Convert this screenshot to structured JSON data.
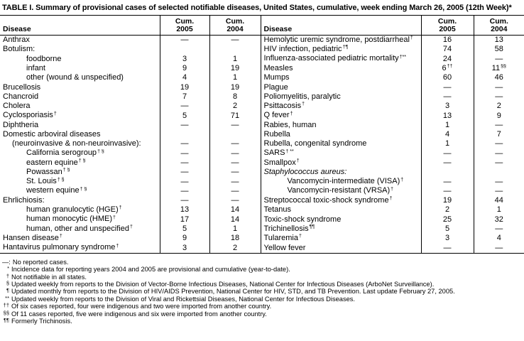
{
  "title": "TABLE I. Summary of provisional cases of selected notifiable diseases, United States, cumulative, week ending March 26, 2005 (12th Week)*",
  "header": {
    "disease_label": "Disease",
    "cum_label": "Cum.",
    "year_2005": "2005",
    "year_2004": "2004"
  },
  "table": {
    "left_rows": [
      {
        "name": "Anthrax",
        "indent": 0,
        "c2005": "—",
        "c2004": "—"
      },
      {
        "name": "Botulism:",
        "indent": 0,
        "c2005": "",
        "c2004": ""
      },
      {
        "name": "foodborne",
        "indent": 2,
        "c2005": "3",
        "c2004": "1"
      },
      {
        "name": "infant",
        "indent": 2,
        "c2005": "9",
        "c2004": "19"
      },
      {
        "name": "other (wound & unspecified)",
        "indent": 2,
        "c2005": "4",
        "c2004": "1"
      },
      {
        "name": "Brucellosis",
        "indent": 0,
        "c2005": "19",
        "c2004": "19"
      },
      {
        "name": "Chancroid",
        "indent": 0,
        "c2005": "7",
        "c2004": "8"
      },
      {
        "name": "Cholera",
        "indent": 0,
        "c2005": "—",
        "c2004": "2"
      },
      {
        "name": "Cyclosporiasis",
        "sup": "†",
        "indent": 0,
        "c2005": "5",
        "c2004": "71"
      },
      {
        "name": "Diphtheria",
        "indent": 0,
        "c2005": "—",
        "c2004": "—"
      },
      {
        "name": "Domestic arboviral diseases",
        "indent": 0,
        "c2005": "",
        "c2004": ""
      },
      {
        "name": "(neuroinvasive & non-neuroinvasive):",
        "indent": 1,
        "c2005": "—",
        "c2004": "—"
      },
      {
        "name": "California serogroup",
        "sup": "† §",
        "indent": 2,
        "c2005": "—",
        "c2004": "—"
      },
      {
        "name": "eastern equine",
        "sup": "† §",
        "indent": 2,
        "c2005": "—",
        "c2004": "—"
      },
      {
        "name": "Powassan",
        "sup": "† §",
        "indent": 2,
        "c2005": "—",
        "c2004": "—"
      },
      {
        "name": "St. Louis",
        "sup": "† §",
        "indent": 2,
        "c2005": "—",
        "c2004": "—"
      },
      {
        "name": "western equine",
        "sup": "† §",
        "indent": 2,
        "c2005": "—",
        "c2004": "—"
      },
      {
        "name": "Ehrlichiosis:",
        "indent": 0,
        "c2005": "—",
        "c2004": "—"
      },
      {
        "name": "human granulocytic (HGE)",
        "sup": "†",
        "indent": 2,
        "c2005": "13",
        "c2004": "14"
      },
      {
        "name": "human monocytic (HME)",
        "sup": "†",
        "indent": 2,
        "c2005": "17",
        "c2004": "14"
      },
      {
        "name": "human, other and unspecified",
        "sup": "†",
        "indent": 2,
        "c2005": "5",
        "c2004": "1"
      },
      {
        "name": "Hansen disease",
        "sup": "†",
        "indent": 0,
        "c2005": "9",
        "c2004": "18"
      },
      {
        "name": "Hantavirus pulmonary syndrome",
        "sup": "†",
        "indent": 0,
        "c2005": "3",
        "c2004": "2"
      }
    ],
    "right_rows": [
      {
        "name": "Hemolytic uremic syndrome, postdiarrheal",
        "sup": "†",
        "indent": 0,
        "c2005": "16",
        "c2004": "13"
      },
      {
        "name": "HIV infection, pediatric",
        "sup": "†¶",
        "indent": 0,
        "c2005": "74",
        "c2004": "58"
      },
      {
        "name": "Influenza-associated pediatric mortality",
        "sup": "†**",
        "indent": 0,
        "c2005": "24",
        "c2004": "—"
      },
      {
        "name": "Measles",
        "indent": 0,
        "c2005": "6",
        "c2005_sup": "††",
        "c2004": "11",
        "c2004_sup": "§§"
      },
      {
        "name": "Mumps",
        "indent": 0,
        "c2005": "60",
        "c2004": "46"
      },
      {
        "name": "Plague",
        "indent": 0,
        "c2005": "—",
        "c2004": "—"
      },
      {
        "name": "Poliomyelitis, paralytic",
        "indent": 0,
        "c2005": "—",
        "c2004": "—"
      },
      {
        "name": "Psittacosis",
        "sup": "†",
        "indent": 0,
        "c2005": "3",
        "c2004": "2"
      },
      {
        "name": "Q fever",
        "sup": "†",
        "indent": 0,
        "c2005": "13",
        "c2004": "9"
      },
      {
        "name": "Rabies, human",
        "indent": 0,
        "c2005": "1",
        "c2004": "—"
      },
      {
        "name": "Rubella",
        "indent": 0,
        "c2005": "4",
        "c2004": "7"
      },
      {
        "name": "Rubella, congenital syndrome",
        "indent": 0,
        "c2005": "1",
        "c2004": "—"
      },
      {
        "name": "SARS",
        "sup": "† **",
        "indent": 0,
        "c2005": "—",
        "c2004": "—"
      },
      {
        "name": "Smallpox",
        "sup": "†",
        "indent": 0,
        "c2005": "—",
        "c2004": "—"
      },
      {
        "name": "Staphylococcus aureus:",
        "italic": true,
        "indent": 0,
        "c2005": "",
        "c2004": ""
      },
      {
        "name": "Vancomycin-intermediate (VISA)",
        "sup": "†",
        "indent": 2,
        "c2005": "—",
        "c2004": "—"
      },
      {
        "name": "Vancomycin-resistant (VRSA)",
        "sup": "†",
        "indent": 2,
        "c2005": "—",
        "c2004": "—"
      },
      {
        "name": "Streptococcal toxic-shock syndrome",
        "sup": "†",
        "indent": 0,
        "c2005": "19",
        "c2004": "44"
      },
      {
        "name": "Tetanus",
        "indent": 0,
        "c2005": "2",
        "c2004": "1"
      },
      {
        "name": "Toxic-shock syndrome",
        "indent": 0,
        "c2005": "25",
        "c2004": "32"
      },
      {
        "name": "Trichinellosis",
        "sup": "¶¶",
        "indent": 0,
        "c2005": "5",
        "c2004": "—"
      },
      {
        "name": "Tularemia",
        "sup": "†",
        "indent": 0,
        "c2005": "3",
        "c2004": "4"
      },
      {
        "name": "Yellow fever",
        "indent": 0,
        "c2005": "—",
        "c2004": "—"
      }
    ]
  },
  "footnotes": [
    {
      "marker": "—:",
      "text": "No reported cases."
    },
    {
      "marker": "*",
      "text": "Incidence data for reporting years 2004 and 2005 are provisional and cumulative (year-to-date)."
    },
    {
      "marker": "†",
      "text": "Not notifiable in all states."
    },
    {
      "marker": "§",
      "text": "Updated weekly from reports to the Division of Vector-Borne Infectious Diseases, National Center for Infectious Diseases (ArboNet Surveillance)."
    },
    {
      "marker": "¶",
      "text": "Updated monthly from reports to the Division of HIV/AIDS Prevention, National Center for HIV, STD, and TB Prevention. Last update February 27, 2005."
    },
    {
      "marker": "**",
      "text": "Updated weekly from reports to the Division of Viral and Rickettsial Diseases, National Center for Infectious Diseases."
    },
    {
      "marker": "††",
      "text": "Of six cases reported, four were indigenous and two were imported from another country."
    },
    {
      "marker": "§§",
      "text": "Of 11 cases reported, five were indigenous and six were imported from another country."
    },
    {
      "marker": "¶¶",
      "text": "Formerly Trichinosis."
    }
  ]
}
